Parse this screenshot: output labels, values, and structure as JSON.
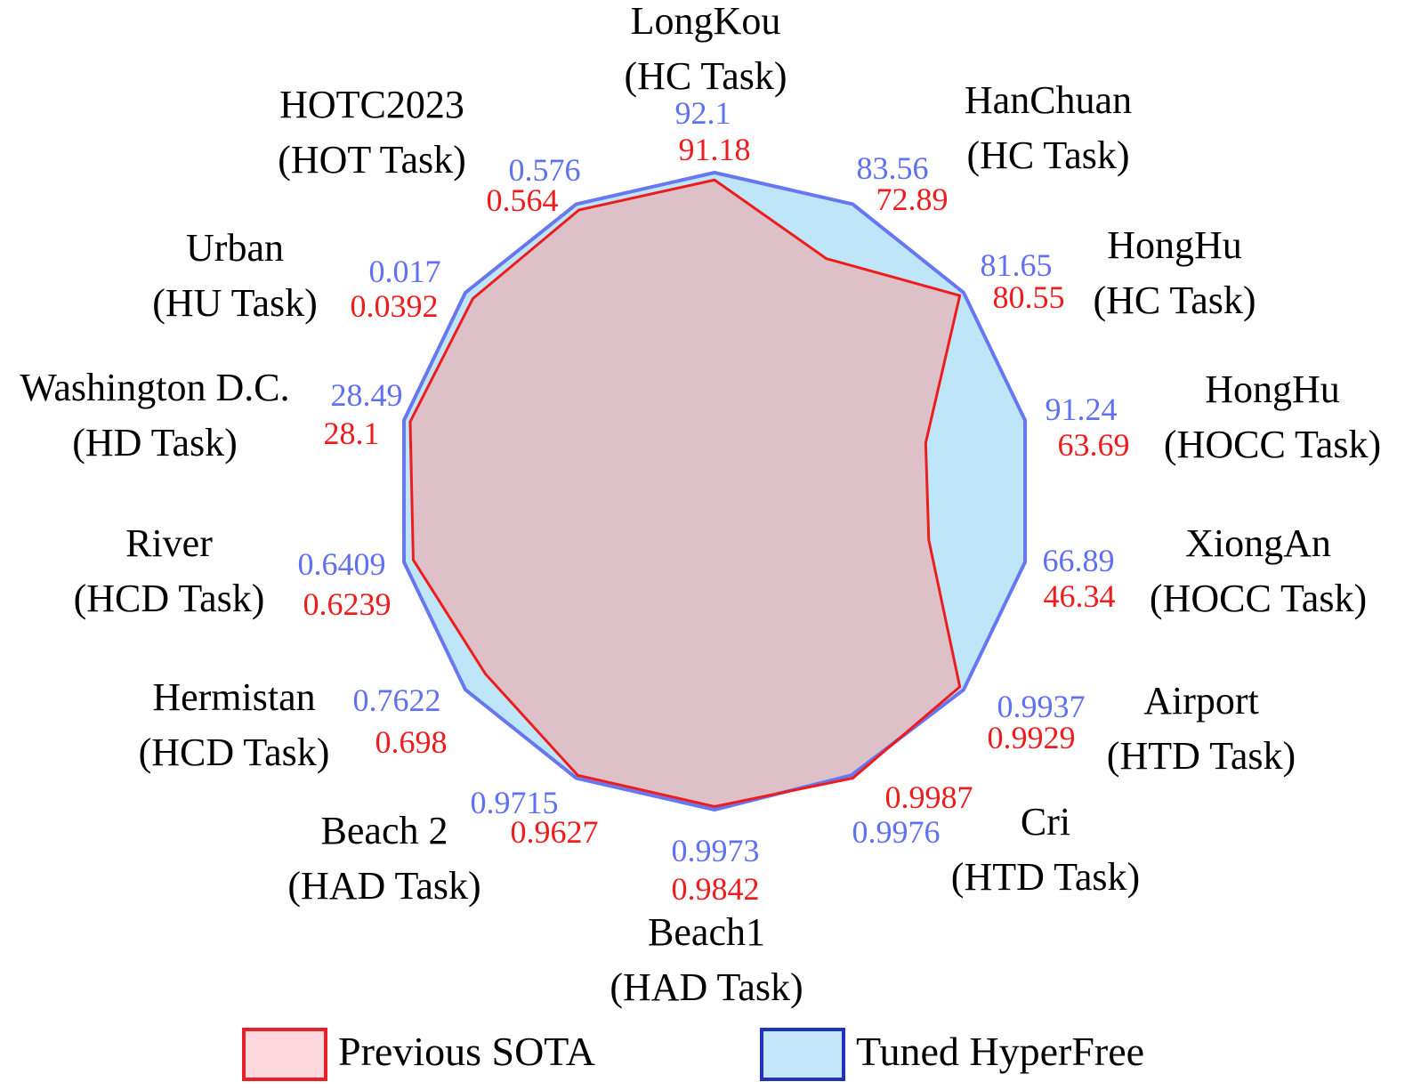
{
  "colors": {
    "previous_line": "#ee1c1c",
    "previous_fill": "#e3b9c0",
    "tuned_line": "#6677f0",
    "tuned_fill": "#bfe6f8",
    "previous_text": "#ee1c1c",
    "tuned_text": "#5f70f0",
    "grid": "#cccccc",
    "legend_previous_border": "#e8202a",
    "legend_previous_fill": "#fbd8dc",
    "legend_tuned_border": "#2233bb",
    "legend_tuned_fill": "#c3e6f8"
  },
  "chart_data": {
    "type": "radar",
    "grid": true,
    "legend_position": "bottom",
    "axes": [
      {
        "name": "LongKou",
        "task": "(HC Task)",
        "previous": "91.18",
        "tuned": "92.1",
        "r_prev": 0.977,
        "r_tuned": 1.0
      },
      {
        "name": "HanChuan",
        "task": "(HC Task)",
        "previous": "72.89",
        "tuned": "83.56",
        "r_prev": 0.81,
        "r_tuned": 1.0
      },
      {
        "name": "HongHu",
        "task": "(HC Task)",
        "previous": "80.55",
        "tuned": "81.65",
        "r_prev": 0.985,
        "r_tuned": 1.0
      },
      {
        "name": "HongHu",
        "task": "(HOCC Task)",
        "previous": "63.69",
        "tuned": "91.24",
        "r_prev": 0.68,
        "r_tuned": 1.0
      },
      {
        "name": "XiongAn",
        "task": "(HOCC Task)",
        "previous": "46.34",
        "tuned": "66.89",
        "r_prev": 0.69,
        "r_tuned": 1.0
      },
      {
        "name": "Airport",
        "task": "(HTD Task)",
        "previous": "0.9929",
        "tuned": "0.9937",
        "r_prev": 0.985,
        "r_tuned": 1.0
      },
      {
        "name": "Cri",
        "task": "(HTD Task)",
        "previous": "0.9987",
        "tuned": "0.9976",
        "r_prev": 1.0,
        "r_tuned": 0.99
      },
      {
        "name": "Beach1",
        "task": "(HAD Task)",
        "previous": "0.9842",
        "tuned": "0.9973",
        "r_prev": 0.99,
        "r_tuned": 1.0
      },
      {
        "name": "Beach 2",
        "task": "(HAD Task)",
        "previous": "0.9627",
        "tuned": "0.9715",
        "r_prev": 0.99,
        "r_tuned": 1.0
      },
      {
        "name": "Hermistan",
        "task": "(HCD Task)",
        "previous": "0.698",
        "tuned": "0.7622",
        "r_prev": 0.92,
        "r_tuned": 1.0
      },
      {
        "name": "River",
        "task": "(HCD Task)",
        "previous": "0.6239",
        "tuned": "0.6409",
        "r_prev": 0.97,
        "r_tuned": 1.0
      },
      {
        "name": "Washington D.C.",
        "task": "(HD Task)",
        "previous": "28.1",
        "tuned": "28.49",
        "r_prev": 0.98,
        "r_tuned": 1.0
      },
      {
        "name": "Urban",
        "task": "(HU Task)",
        "previous": "0.0392",
        "tuned": "0.017",
        "r_prev": 0.97,
        "r_tuned": 1.0
      },
      {
        "name": "HOTC2023",
        "task": "(HOT Task)",
        "previous": "0.564",
        "tuned": "0.576",
        "r_prev": 0.98,
        "r_tuned": 1.0
      }
    ],
    "series": [
      {
        "name": "Previous SOTA",
        "key": "previous"
      },
      {
        "name": "Tuned HyperFree",
        "key": "tuned"
      }
    ]
  },
  "legend": {
    "previous_label": "Previous SOTA",
    "tuned_label": "Tuned HyperFree"
  }
}
